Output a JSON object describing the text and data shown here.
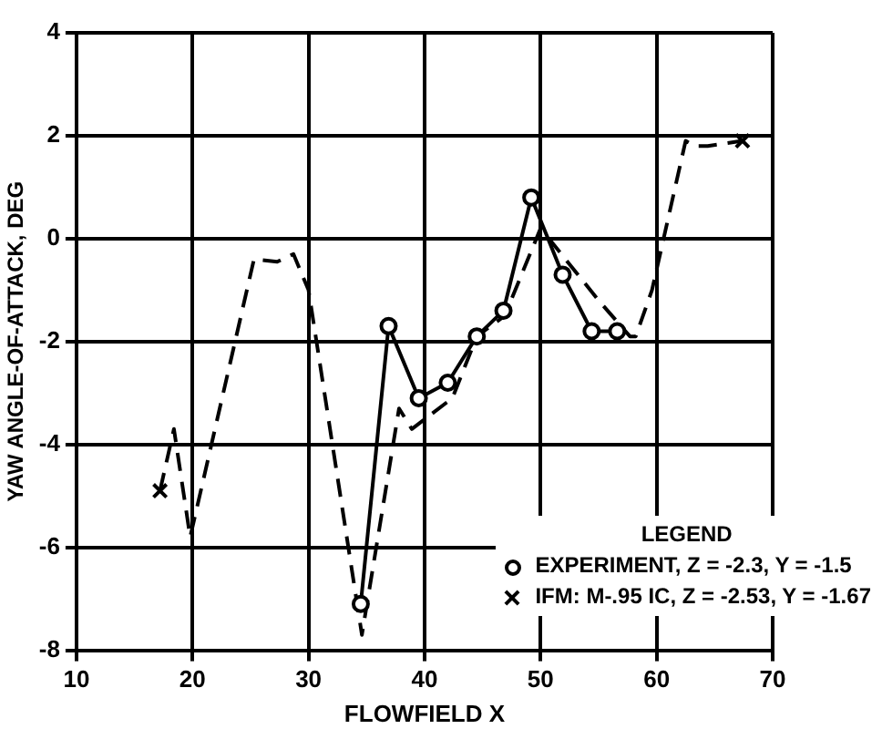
{
  "chart_data": {
    "type": "line",
    "xlabel": "FLOWFIELD X",
    "ylabel": "YAW ANGLE-OF-ATTACK, DEG",
    "legend_title": "LEGEND",
    "legend": "bottom right",
    "grid": true,
    "xlim": [
      10,
      70
    ],
    "xticks": [
      10,
      20,
      30,
      40,
      50,
      60,
      70
    ],
    "ylim": [
      -8,
      4
    ],
    "yticks": [
      -8,
      -6,
      -4,
      -2,
      0,
      2,
      4
    ],
    "series": [
      {
        "name": "EXPERIMENT, Z = -2.3, Y = -1.5",
        "color": "#000000",
        "marker": "circle",
        "line_style": "solid",
        "x": [
          34.5,
          36.9,
          39.5,
          42.0,
          44.5,
          46.8,
          49.2,
          51.9,
          54.4,
          56.6
        ],
        "values": [
          -7.1,
          -1.7,
          -3.1,
          -2.8,
          -1.9,
          -1.4,
          0.8,
          -0.7,
          -1.8,
          -1.8
        ]
      },
      {
        "name": "IFM: M-.95 IC, Z = -2.53, Y = -1.67",
        "color": "#000000",
        "marker": "none",
        "line_style": "dashed",
        "x": [
          17.2,
          18.4,
          19.8,
          25.3,
          27.3,
          28.7,
          30.0,
          34.6,
          37.8,
          38.9,
          42.4,
          44.5,
          46.9,
          50.0,
          55.0,
          57.7,
          58.2,
          59.6,
          62.5,
          63.3,
          64.4,
          67.4
        ],
        "values": [
          -4.9,
          -3.7,
          -5.8,
          -0.4,
          -0.45,
          -0.3,
          -1.0,
          -7.7,
          -3.3,
          -3.7,
          -3.1,
          -1.9,
          -1.5,
          0.2,
          -1.2,
          -1.9,
          -1.9,
          -1.0,
          1.9,
          1.8,
          1.8,
          1.9
        ]
      },
      {
        "type": "scatter",
        "color": "#000000",
        "marker": "cross",
        "x": [
          17.2,
          67.4
        ],
        "values": [
          -4.9,
          1.9
        ]
      }
    ]
  }
}
